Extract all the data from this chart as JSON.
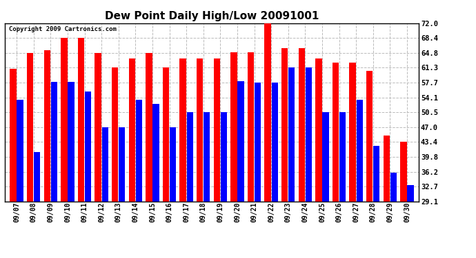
{
  "title": "Dew Point Daily High/Low 20091001",
  "copyright": "Copyright 2009 Cartronics.com",
  "dates": [
    "09/07",
    "09/08",
    "09/09",
    "09/10",
    "09/11",
    "09/12",
    "09/13",
    "09/14",
    "09/15",
    "09/16",
    "09/17",
    "09/18",
    "09/19",
    "09/20",
    "09/21",
    "09/22",
    "09/23",
    "09/24",
    "09/25",
    "09/26",
    "09/27",
    "09/28",
    "09/29",
    "09/30"
  ],
  "highs": [
    61.0,
    64.8,
    65.5,
    68.4,
    68.4,
    64.8,
    61.3,
    63.5,
    64.8,
    61.3,
    63.5,
    63.5,
    63.5,
    65.0,
    65.0,
    72.0,
    66.0,
    66.0,
    63.5,
    62.5,
    62.5,
    60.5,
    45.0,
    43.4
  ],
  "lows": [
    53.5,
    41.0,
    57.8,
    57.8,
    55.5,
    47.0,
    47.0,
    53.5,
    52.5,
    47.0,
    50.5,
    50.5,
    50.5,
    58.0,
    57.7,
    57.7,
    61.3,
    61.3,
    50.5,
    50.5,
    53.5,
    42.5,
    36.0,
    33.0
  ],
  "ylim_min": 29.1,
  "ylim_max": 72.0,
  "yticks": [
    29.1,
    32.7,
    36.2,
    39.8,
    43.4,
    47.0,
    50.5,
    54.1,
    57.7,
    61.3,
    64.8,
    68.4,
    72.0
  ],
  "high_color": "#ff0000",
  "low_color": "#0000ff",
  "bg_color": "#ffffff",
  "grid_color": "#bbbbbb",
  "title_fontsize": 11,
  "bar_width": 0.38,
  "bar_gap": 0.03
}
